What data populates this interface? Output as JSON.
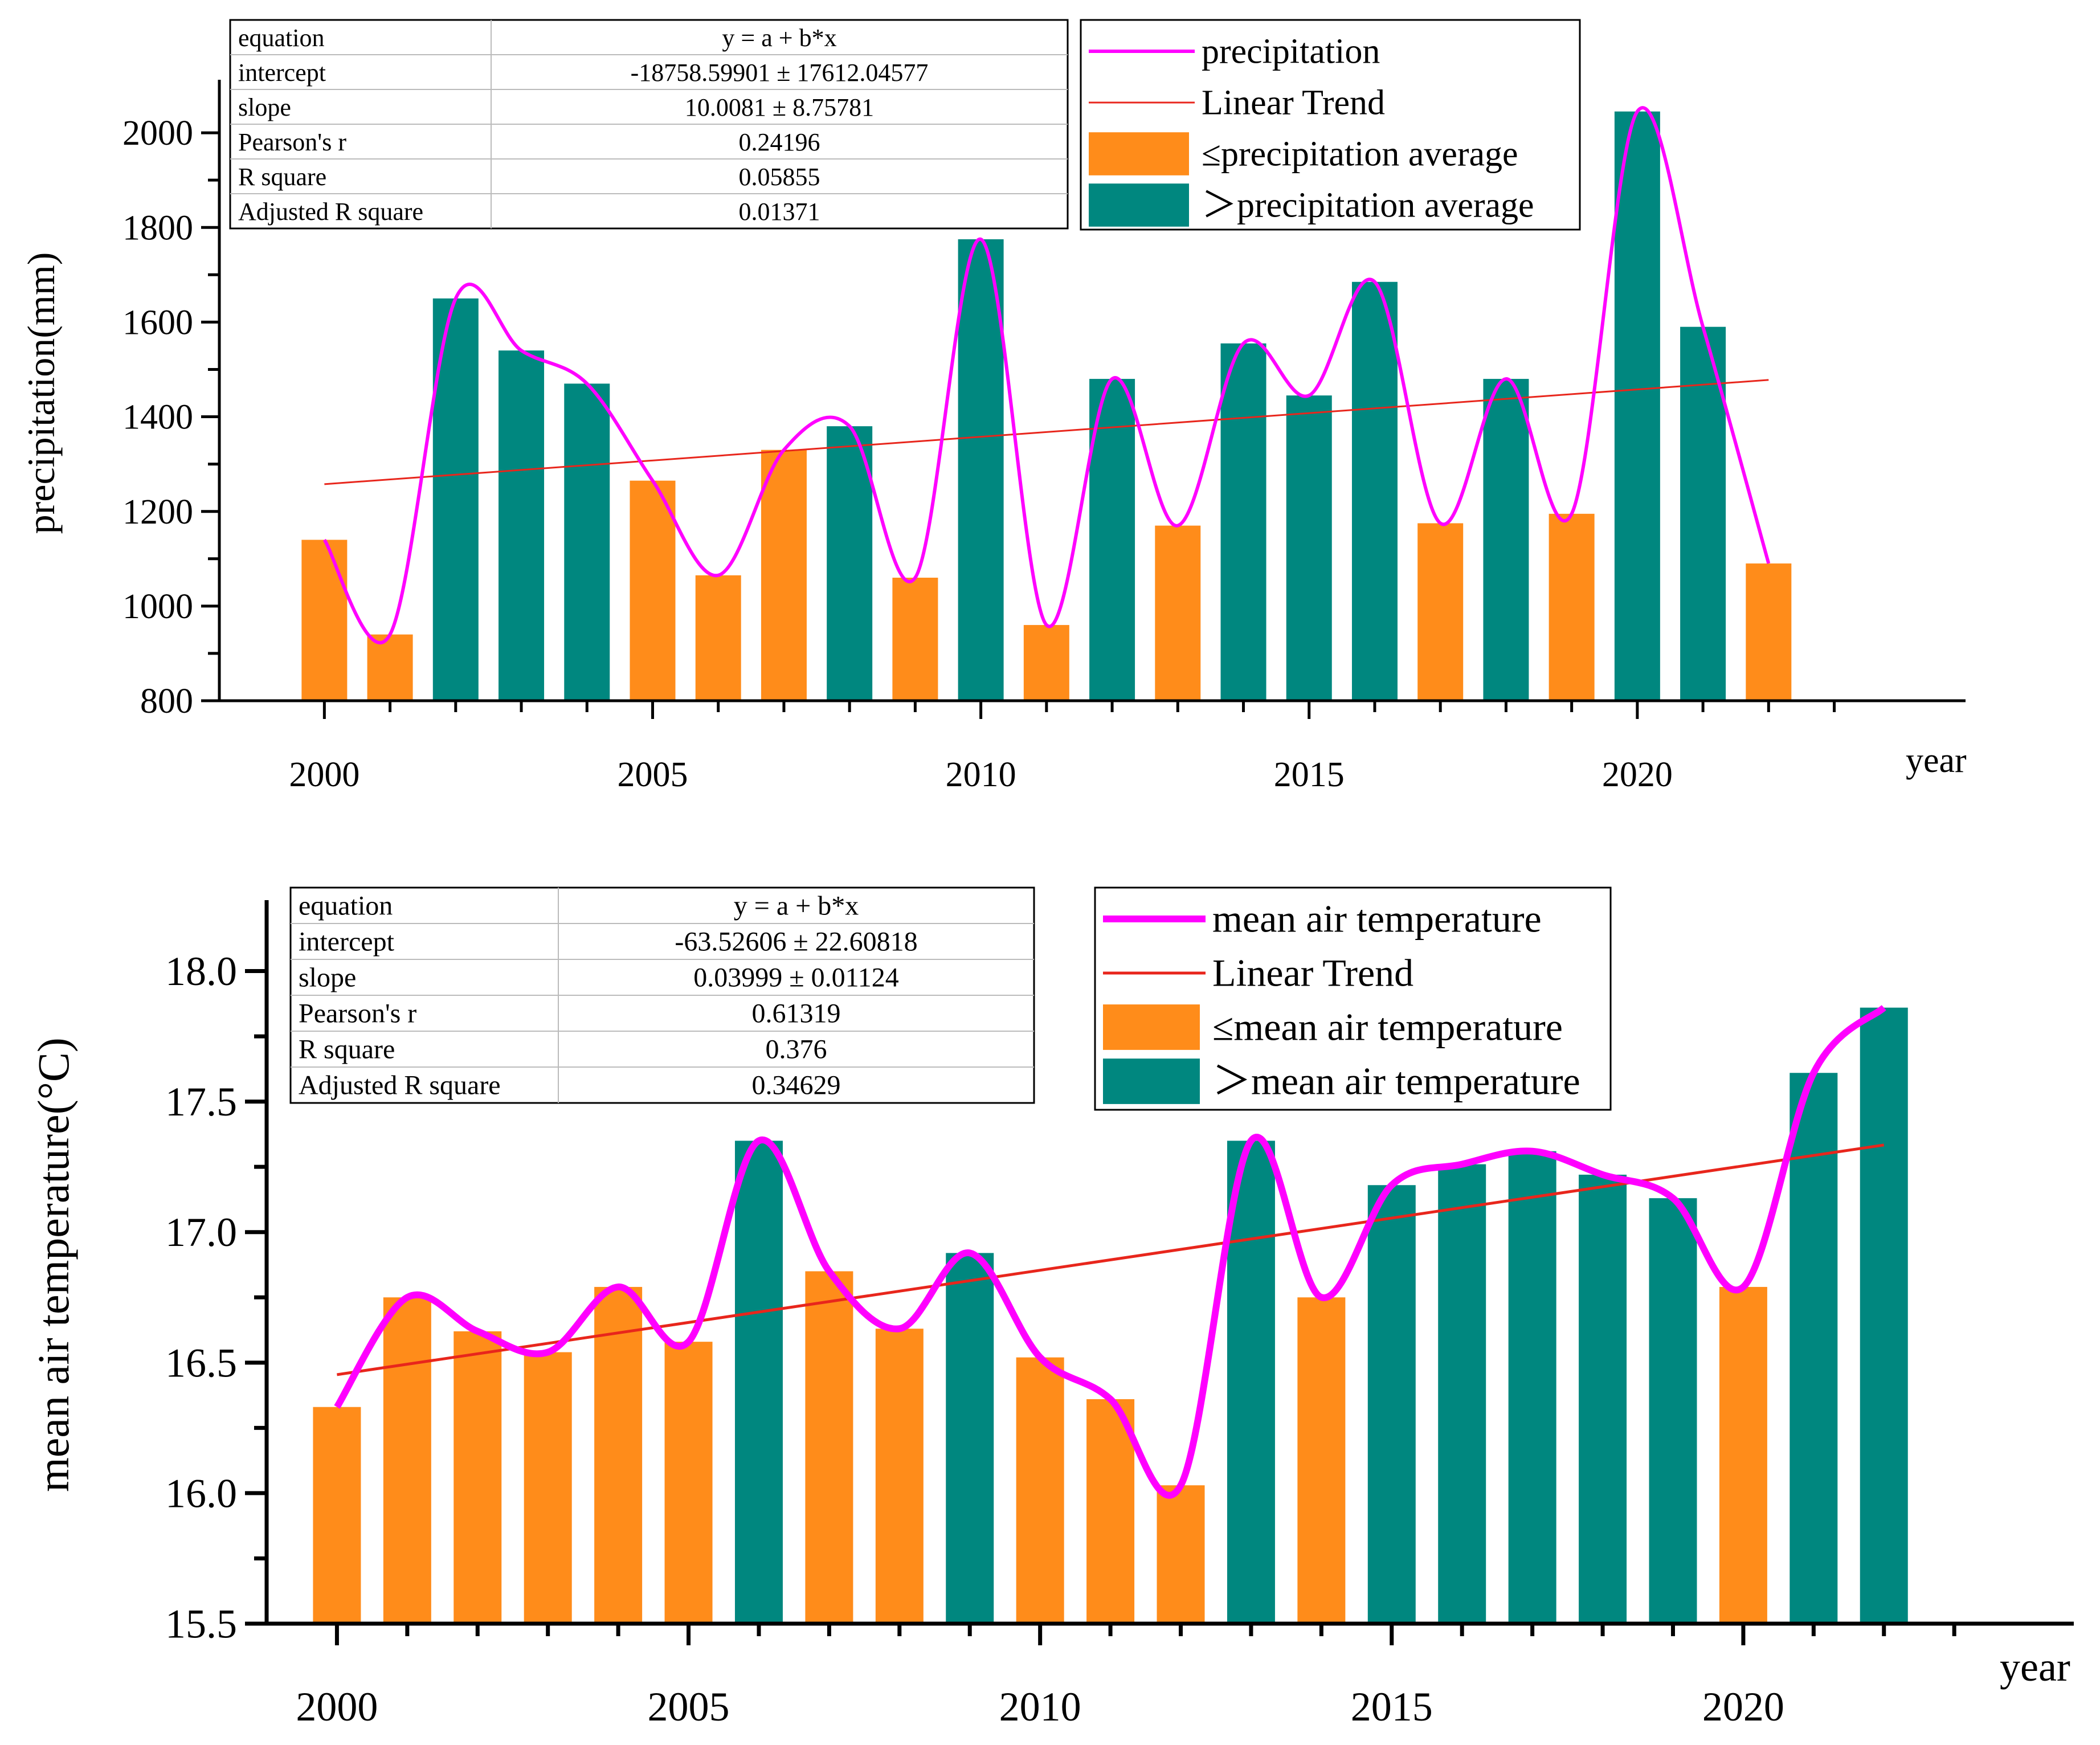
{
  "colors": {
    "orange": "#ff8c1a",
    "teal": "#00877f",
    "curve": "#ff00ff",
    "trend": "#e8261c",
    "axis": "#000000"
  },
  "chart_data": [
    {
      "type": "bar",
      "title": "",
      "xlabel": "year",
      "ylabel": "precipitation(mm)",
      "ylim": [
        800,
        2100
      ],
      "xlim": [
        1998.4,
        2025.0
      ],
      "yticks": [
        800,
        1000,
        1200,
        1400,
        1600,
        1800,
        2000
      ],
      "ytick_labels": [
        "800",
        "1000",
        "1200",
        "1400",
        "1600",
        "1800",
        "2000"
      ],
      "xticks": [
        2000,
        2005,
        2010,
        2015,
        2020
      ],
      "xtick_labels": [
        "2000",
        "2005",
        "2010",
        "2015",
        "2020"
      ],
      "x": [
        2000,
        2001,
        2002,
        2003,
        2004,
        2005,
        2006,
        2007,
        2008,
        2009,
        2010,
        2011,
        2012,
        2013,
        2014,
        2015,
        2016,
        2017,
        2018,
        2019,
        2020,
        2021,
        2022
      ],
      "values": [
        1140,
        940,
        1650,
        1540,
        1470,
        1265,
        1065,
        1330,
        1380,
        1060,
        1775,
        960,
        1480,
        1170,
        1555,
        1445,
        1685,
        1175,
        1480,
        1195,
        2045,
        1590,
        1090
      ],
      "above_average": [
        false,
        false,
        true,
        true,
        true,
        false,
        false,
        false,
        true,
        false,
        true,
        false,
        true,
        false,
        true,
        true,
        true,
        false,
        true,
        false,
        true,
        true,
        false
      ],
      "trend": {
        "intercept": -18758.59901,
        "slope": 10.0081
      },
      "legend": [
        "precipitation",
        "Linear Trend",
        "≤precipitation average",
        "＞precipitation average"
      ],
      "stats": {
        "rows": [
          [
            "equation",
            "y = a + b*x"
          ],
          [
            "intercept",
            "-18758.59901 ± 17612.04577"
          ],
          [
            "slope",
            "10.0081 ± 8.75781"
          ],
          [
            "Pearson's r",
            "0.24196"
          ],
          [
            "R square",
            "0.05855"
          ],
          [
            "Adjusted R square",
            "0.01371"
          ]
        ]
      }
    },
    {
      "type": "bar",
      "title": "",
      "xlabel": "year",
      "ylabel": "mean air temperature(°C)",
      "ylim": [
        15.5,
        18.25
      ],
      "xlim": [
        1999.0,
        2024.7
      ],
      "yticks": [
        15.5,
        16.0,
        16.5,
        17.0,
        17.5,
        18.0
      ],
      "ytick_labels": [
        "15.5",
        "16.0",
        "16.5",
        "17.0",
        "17.5",
        "18.0"
      ],
      "xticks": [
        2000,
        2005,
        2010,
        2015,
        2020
      ],
      "xtick_labels": [
        "2000",
        "2005",
        "2010",
        "2015",
        "2020"
      ],
      "x": [
        2000,
        2001,
        2002,
        2003,
        2004,
        2005,
        2006,
        2007,
        2008,
        2009,
        2010,
        2011,
        2012,
        2013,
        2014,
        2015,
        2016,
        2017,
        2018,
        2019,
        2020,
        2021,
        2022
      ],
      "values": [
        16.33,
        16.75,
        16.62,
        16.54,
        16.79,
        16.58,
        17.35,
        16.85,
        16.63,
        16.92,
        16.52,
        16.36,
        16.03,
        17.35,
        16.75,
        17.18,
        17.26,
        17.31,
        17.22,
        17.13,
        16.79,
        17.61,
        17.86
      ],
      "above_average": [
        false,
        false,
        false,
        false,
        false,
        false,
        true,
        false,
        false,
        true,
        false,
        false,
        false,
        true,
        false,
        true,
        true,
        true,
        true,
        true,
        false,
        true,
        true
      ],
      "trend": {
        "intercept": -63.52606,
        "slope": 0.03999
      },
      "legend": [
        "mean air temperature",
        "Linear Trend",
        "≤mean air temperature",
        "＞mean air temperature"
      ],
      "stats": {
        "rows": [
          [
            "equation",
            "y = a + b*x"
          ],
          [
            "intercept",
            "-63.52606 ± 22.60818"
          ],
          [
            "slope",
            "0.03999 ± 0.01124"
          ],
          [
            "Pearson's r",
            "0.61319"
          ],
          [
            "R square",
            "0.376"
          ],
          [
            "Adjusted R square",
            "0.34629"
          ]
        ]
      }
    }
  ]
}
